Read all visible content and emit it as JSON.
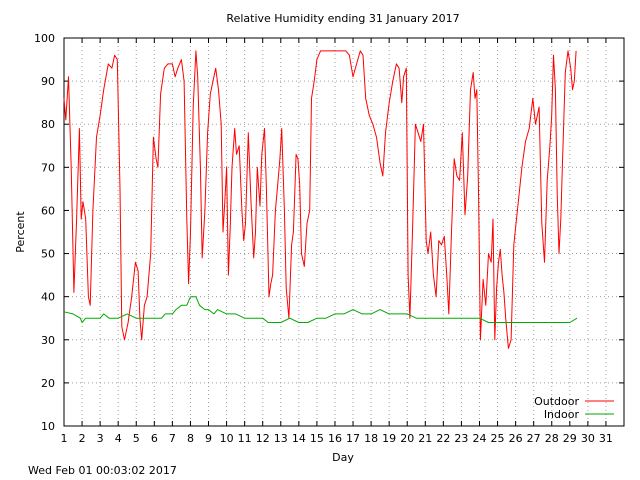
{
  "chart_data": {
    "type": "line",
    "title": "Relative Humidity ending 31 January 2017",
    "xlabel": "Day",
    "ylabel": "Percent",
    "xlim": [
      1,
      32
    ],
    "ylim": [
      10,
      100
    ],
    "x_ticks": [
      1,
      2,
      3,
      4,
      5,
      6,
      7,
      8,
      9,
      10,
      11,
      12,
      13,
      14,
      15,
      16,
      17,
      18,
      19,
      20,
      21,
      22,
      23,
      24,
      25,
      26,
      27,
      28,
      29,
      30,
      31
    ],
    "y_ticks": [
      10,
      20,
      30,
      40,
      50,
      60,
      70,
      80,
      90,
      100
    ],
    "grid": true,
    "legend_position": "bottom-right",
    "series": [
      {
        "name": "Outdoor",
        "color": "#ff0000",
        "points": [
          [
            1.0,
            86
          ],
          [
            1.1,
            81
          ],
          [
            1.25,
            91
          ],
          [
            1.4,
            70
          ],
          [
            1.55,
            41
          ],
          [
            1.7,
            58
          ],
          [
            1.85,
            79
          ],
          [
            1.95,
            58
          ],
          [
            2.05,
            62
          ],
          [
            2.2,
            58
          ],
          [
            2.35,
            40
          ],
          [
            2.45,
            38
          ],
          [
            2.6,
            60
          ],
          [
            2.8,
            77
          ],
          [
            3.0,
            82
          ],
          [
            3.2,
            88
          ],
          [
            3.45,
            94
          ],
          [
            3.65,
            93
          ],
          [
            3.8,
            96
          ],
          [
            3.95,
            95
          ],
          [
            4.1,
            65
          ],
          [
            4.2,
            33
          ],
          [
            4.35,
            30
          ],
          [
            4.55,
            34
          ],
          [
            4.75,
            40
          ],
          [
            4.95,
            48
          ],
          [
            5.1,
            46
          ],
          [
            5.2,
            35
          ],
          [
            5.3,
            30
          ],
          [
            5.45,
            38
          ],
          [
            5.6,
            40
          ],
          [
            5.8,
            50
          ],
          [
            5.95,
            77
          ],
          [
            6.1,
            72
          ],
          [
            6.2,
            70
          ],
          [
            6.35,
            87
          ],
          [
            6.55,
            93
          ],
          [
            6.75,
            94
          ],
          [
            7.0,
            94
          ],
          [
            7.15,
            91
          ],
          [
            7.3,
            93
          ],
          [
            7.5,
            95
          ],
          [
            7.65,
            90
          ],
          [
            7.8,
            58
          ],
          [
            7.9,
            43
          ],
          [
            8.0,
            55
          ],
          [
            8.15,
            84
          ],
          [
            8.3,
            97
          ],
          [
            8.4,
            91
          ],
          [
            8.55,
            70
          ],
          [
            8.65,
            49
          ],
          [
            8.8,
            60
          ],
          [
            8.95,
            78
          ],
          [
            9.1,
            87
          ],
          [
            9.25,
            90
          ],
          [
            9.4,
            93
          ],
          [
            9.55,
            88
          ],
          [
            9.7,
            80
          ],
          [
            9.8,
            55
          ],
          [
            9.9,
            62
          ],
          [
            10.0,
            70
          ],
          [
            10.1,
            45
          ],
          [
            10.2,
            56
          ],
          [
            10.3,
            70
          ],
          [
            10.45,
            79
          ],
          [
            10.55,
            73
          ],
          [
            10.7,
            75
          ],
          [
            10.85,
            60
          ],
          [
            10.95,
            53
          ],
          [
            11.05,
            57
          ],
          [
            11.2,
            78
          ],
          [
            11.35,
            62
          ],
          [
            11.5,
            49
          ],
          [
            11.6,
            55
          ],
          [
            11.7,
            70
          ],
          [
            11.85,
            61
          ],
          [
            11.95,
            73
          ],
          [
            12.1,
            79
          ],
          [
            12.2,
            66
          ],
          [
            12.35,
            40
          ],
          [
            12.45,
            43
          ],
          [
            12.55,
            45
          ],
          [
            12.7,
            60
          ],
          [
            12.85,
            67
          ],
          [
            12.95,
            72
          ],
          [
            13.05,
            79
          ],
          [
            13.2,
            60
          ],
          [
            13.3,
            42
          ],
          [
            13.45,
            35
          ],
          [
            13.6,
            52
          ],
          [
            13.7,
            55
          ],
          [
            13.85,
            73
          ],
          [
            13.95,
            72
          ],
          [
            14.05,
            66
          ],
          [
            14.15,
            50
          ],
          [
            14.3,
            47
          ],
          [
            14.45,
            57
          ],
          [
            14.6,
            60
          ],
          [
            14.7,
            86
          ],
          [
            14.85,
            90
          ],
          [
            15.0,
            95
          ],
          [
            15.2,
            97
          ],
          [
            15.5,
            97
          ],
          [
            15.8,
            97
          ],
          [
            16.1,
            97
          ],
          [
            16.3,
            97
          ],
          [
            16.6,
            97
          ],
          [
            16.8,
            96
          ],
          [
            17.0,
            91
          ],
          [
            17.2,
            94
          ],
          [
            17.4,
            97
          ],
          [
            17.55,
            96
          ],
          [
            17.7,
            86
          ],
          [
            17.9,
            82
          ],
          [
            18.1,
            80
          ],
          [
            18.3,
            77
          ],
          [
            18.5,
            71
          ],
          [
            18.65,
            68
          ],
          [
            18.8,
            78
          ],
          [
            19.0,
            85
          ],
          [
            19.2,
            90
          ],
          [
            19.4,
            94
          ],
          [
            19.55,
            93
          ],
          [
            19.7,
            85
          ],
          [
            19.8,
            91
          ],
          [
            19.95,
            93
          ],
          [
            20.05,
            45
          ],
          [
            20.15,
            35
          ],
          [
            20.3,
            56
          ],
          [
            20.45,
            80
          ],
          [
            20.6,
            78
          ],
          [
            20.75,
            76
          ],
          [
            20.9,
            80
          ],
          [
            21.05,
            53
          ],
          [
            21.15,
            50
          ],
          [
            21.3,
            55
          ],
          [
            21.45,
            45
          ],
          [
            21.6,
            40
          ],
          [
            21.75,
            53
          ],
          [
            21.9,
            52
          ],
          [
            22.05,
            54
          ],
          [
            22.2,
            44
          ],
          [
            22.3,
            36
          ],
          [
            22.45,
            55
          ],
          [
            22.6,
            72
          ],
          [
            22.75,
            68
          ],
          [
            22.9,
            67
          ],
          [
            23.05,
            78
          ],
          [
            23.2,
            59
          ],
          [
            23.35,
            68
          ],
          [
            23.5,
            88
          ],
          [
            23.65,
            92
          ],
          [
            23.75,
            86
          ],
          [
            23.85,
            88
          ],
          [
            23.95,
            63
          ],
          [
            24.05,
            30
          ],
          [
            24.2,
            44
          ],
          [
            24.35,
            38
          ],
          [
            24.5,
            50
          ],
          [
            24.65,
            48
          ],
          [
            24.75,
            58
          ],
          [
            24.85,
            30
          ],
          [
            24.95,
            42
          ],
          [
            25.05,
            48
          ],
          [
            25.15,
            51
          ],
          [
            25.25,
            45
          ],
          [
            25.35,
            41
          ],
          [
            25.45,
            35
          ],
          [
            25.6,
            28
          ],
          [
            25.75,
            30
          ],
          [
            25.9,
            52
          ],
          [
            26.05,
            58
          ],
          [
            26.2,
            64
          ],
          [
            26.35,
            70
          ],
          [
            26.55,
            76
          ],
          [
            26.75,
            79
          ],
          [
            26.95,
            86
          ],
          [
            27.1,
            80
          ],
          [
            27.2,
            82
          ],
          [
            27.3,
            84
          ],
          [
            27.45,
            57
          ],
          [
            27.6,
            48
          ],
          [
            27.75,
            67
          ],
          [
            27.9,
            75
          ],
          [
            28.0,
            82
          ],
          [
            28.1,
            96
          ],
          [
            28.2,
            88
          ],
          [
            28.3,
            64
          ],
          [
            28.4,
            50
          ],
          [
            28.5,
            58
          ],
          [
            28.6,
            72
          ],
          [
            28.75,
            92
          ],
          [
            28.9,
            97
          ],
          [
            29.05,
            93
          ],
          [
            29.15,
            88
          ],
          [
            29.25,
            90
          ],
          [
            29.35,
            97
          ]
        ]
      },
      {
        "name": "Indoor",
        "color": "#00aa00",
        "points": [
          [
            1.0,
            36.5
          ],
          [
            1.5,
            36
          ],
          [
            1.9,
            35
          ],
          [
            2.0,
            34
          ],
          [
            2.2,
            35
          ],
          [
            3.0,
            35
          ],
          [
            3.2,
            36
          ],
          [
            3.5,
            35
          ],
          [
            4.0,
            35
          ],
          [
            4.5,
            36
          ],
          [
            5.0,
            35
          ],
          [
            6.0,
            35
          ],
          [
            6.4,
            35
          ],
          [
            6.6,
            36
          ],
          [
            7.0,
            36
          ],
          [
            7.2,
            37
          ],
          [
            7.5,
            38
          ],
          [
            7.8,
            38
          ],
          [
            8.0,
            40
          ],
          [
            8.3,
            40
          ],
          [
            8.5,
            38
          ],
          [
            8.8,
            37
          ],
          [
            9.0,
            37
          ],
          [
            9.3,
            36
          ],
          [
            9.5,
            37
          ],
          [
            10.0,
            36
          ],
          [
            10.5,
            36
          ],
          [
            11.0,
            35
          ],
          [
            11.5,
            35
          ],
          [
            12.0,
            35
          ],
          [
            12.3,
            34
          ],
          [
            13.0,
            34
          ],
          [
            13.5,
            35
          ],
          [
            14.0,
            34
          ],
          [
            14.5,
            34
          ],
          [
            15.0,
            35
          ],
          [
            15.5,
            35
          ],
          [
            16.0,
            36
          ],
          [
            16.5,
            36
          ],
          [
            17.0,
            37
          ],
          [
            17.5,
            36
          ],
          [
            18.0,
            36
          ],
          [
            18.5,
            37
          ],
          [
            19.0,
            36
          ],
          [
            19.5,
            36
          ],
          [
            20.0,
            36
          ],
          [
            20.5,
            35
          ],
          [
            21.0,
            35
          ],
          [
            21.5,
            35
          ],
          [
            22.0,
            35
          ],
          [
            22.5,
            35
          ],
          [
            23.0,
            35
          ],
          [
            23.5,
            35
          ],
          [
            24.0,
            35
          ],
          [
            24.5,
            34
          ],
          [
            25.0,
            34
          ],
          [
            26.0,
            34
          ],
          [
            27.0,
            34
          ],
          [
            28.0,
            34
          ],
          [
            28.5,
            34
          ],
          [
            29.0,
            34
          ],
          [
            29.4,
            35
          ]
        ]
      }
    ]
  },
  "footer": {
    "timestamp": "Wed Feb 01 00:03:02 2017"
  }
}
